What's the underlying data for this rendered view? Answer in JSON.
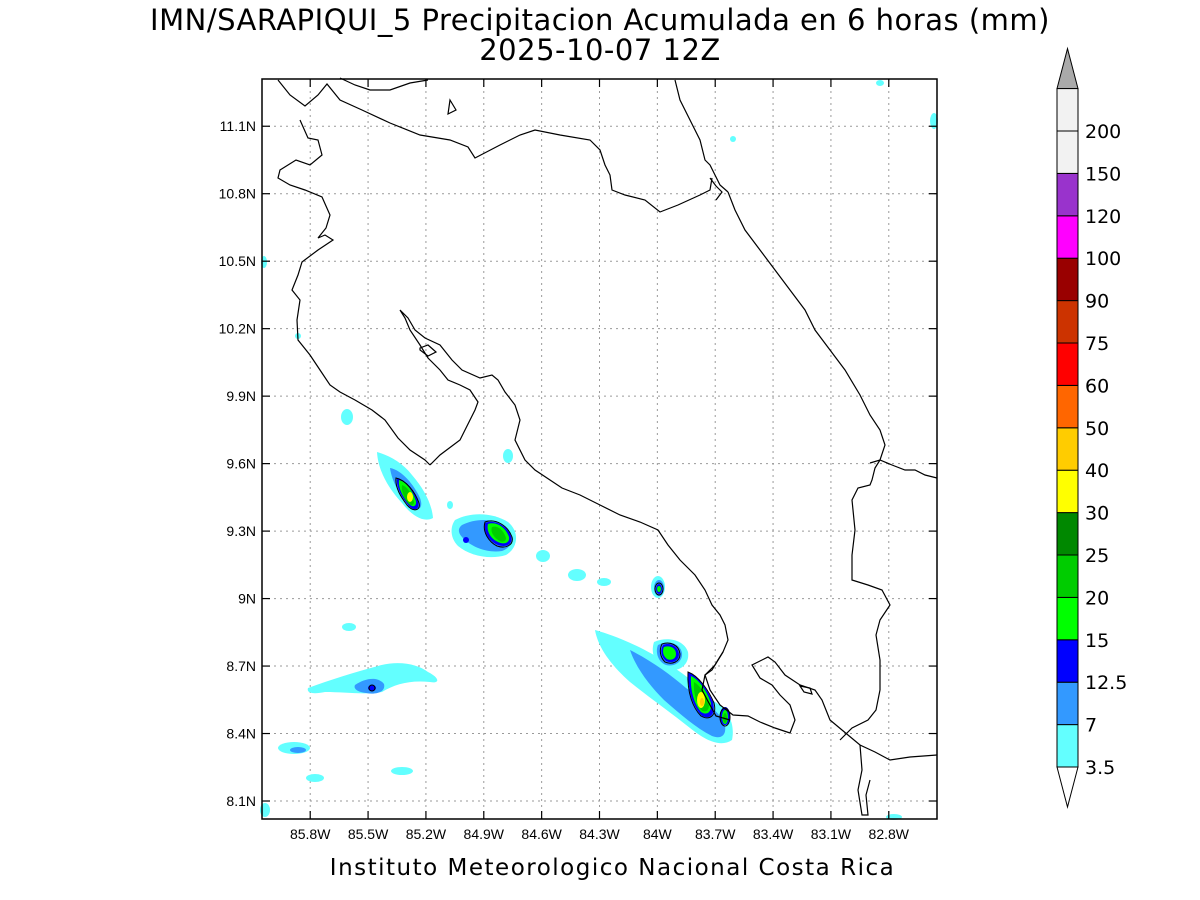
{
  "title": {
    "line1": "IMN/SARAPIQUI_5 Precipitacion Acumulada en 6 horas (mm)",
    "line2": "2025-10-07 12Z"
  },
  "footer": "Instituto Meteorologico Nacional Costa Rica",
  "map": {
    "lon_range": [
      -86.05,
      -82.55
    ],
    "lat_range": [
      8.02,
      11.31
    ],
    "grid": true,
    "lat_ticks": [
      {
        "value": 11.1,
        "label": "11.1N"
      },
      {
        "value": 10.8,
        "label": "10.8N"
      },
      {
        "value": 10.5,
        "label": "10.5N"
      },
      {
        "value": 10.2,
        "label": "10.2N"
      },
      {
        "value": 9.9,
        "label": "9.9N"
      },
      {
        "value": 9.6,
        "label": "9.6N"
      },
      {
        "value": 9.3,
        "label": "9.3N"
      },
      {
        "value": 9.0,
        "label": "9N"
      },
      {
        "value": 8.7,
        "label": "8.7N"
      },
      {
        "value": 8.4,
        "label": "8.4N"
      },
      {
        "value": 8.1,
        "label": "8.1N"
      }
    ],
    "lon_ticks": [
      {
        "value": -85.8,
        "label": "85.8W"
      },
      {
        "value": -85.5,
        "label": "85.5W"
      },
      {
        "value": -85.2,
        "label": "85.2W"
      },
      {
        "value": -84.9,
        "label": "84.9W"
      },
      {
        "value": -84.6,
        "label": "84.6W"
      },
      {
        "value": -84.3,
        "label": "84.3W"
      },
      {
        "value": -84.0,
        "label": "84W"
      },
      {
        "value": -83.7,
        "label": "83.7W"
      },
      {
        "value": -83.4,
        "label": "83.4W"
      },
      {
        "value": -83.1,
        "label": "83.1W"
      },
      {
        "value": -82.8,
        "label": "82.8W"
      }
    ]
  },
  "colorbar": {
    "levels": [
      {
        "label": "3.5",
        "color": "#63ffff"
      },
      {
        "label": "7",
        "color": "#3399ff"
      },
      {
        "label": "12.5",
        "color": "#0000ff"
      },
      {
        "label": "15",
        "color": "#00ff00"
      },
      {
        "label": "20",
        "color": "#00cc00"
      },
      {
        "label": "25",
        "color": "#008800"
      },
      {
        "label": "30",
        "color": "#ffff00"
      },
      {
        "label": "40",
        "color": "#ffcc00"
      },
      {
        "label": "50",
        "color": "#ff6600"
      },
      {
        "label": "60",
        "color": "#ff0000"
      },
      {
        "label": "75",
        "color": "#cc3300"
      },
      {
        "label": "90",
        "color": "#990000"
      },
      {
        "label": "100",
        "color": "#ff00ff"
      },
      {
        "label": "120",
        "color": "#9933cc"
      },
      {
        "label": "150",
        "color": "#f2f2f2"
      },
      {
        "label": "200",
        "color": "#aaaaaa"
      }
    ],
    "top_arrow_color": "#aaaaaa",
    "bottom_arrow_color": "#ffffff"
  }
}
